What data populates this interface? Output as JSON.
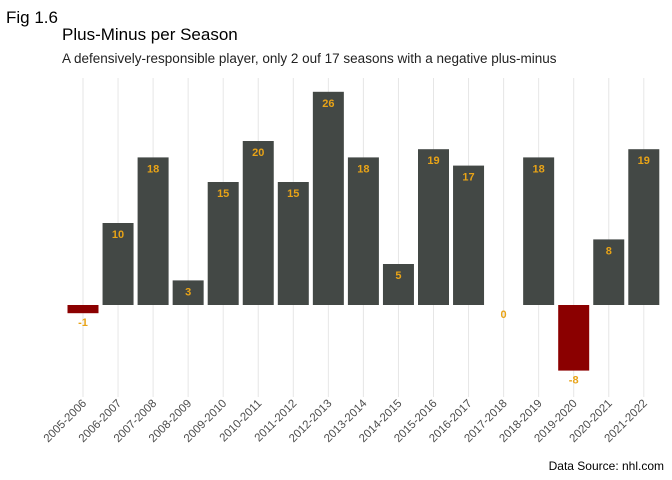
{
  "figure_label": "Fig 1.6",
  "chart_data": {
    "type": "bar",
    "title": "Plus-Minus per Season",
    "subtitle": "A defensively-responsible player, only 2 ouf 17 seasons with a negative plus-minus",
    "source": "Data Source: nhl.com",
    "xlabel": "",
    "ylabel": "",
    "categories": [
      "2005-2006",
      "2006-2007",
      "2007-2008",
      "2008-2009",
      "2009-2010",
      "2010-2011",
      "2011-2012",
      "2012-2013",
      "2013-2014",
      "2014-2015",
      "2015-2016",
      "2016-2017",
      "2017-2018",
      "2018-2019",
      "2019-2020",
      "2020-2021",
      "2021-2022"
    ],
    "values": [
      -1,
      10,
      18,
      3,
      15,
      20,
      15,
      26,
      18,
      5,
      19,
      17,
      0,
      18,
      -8,
      8,
      19
    ],
    "ylim": [
      -10,
      28
    ],
    "grid": "vertical",
    "colors": {
      "positive": "#434845",
      "negative": "#8b0000",
      "label": "#e8a317",
      "grid": "#e6e6e6"
    }
  }
}
